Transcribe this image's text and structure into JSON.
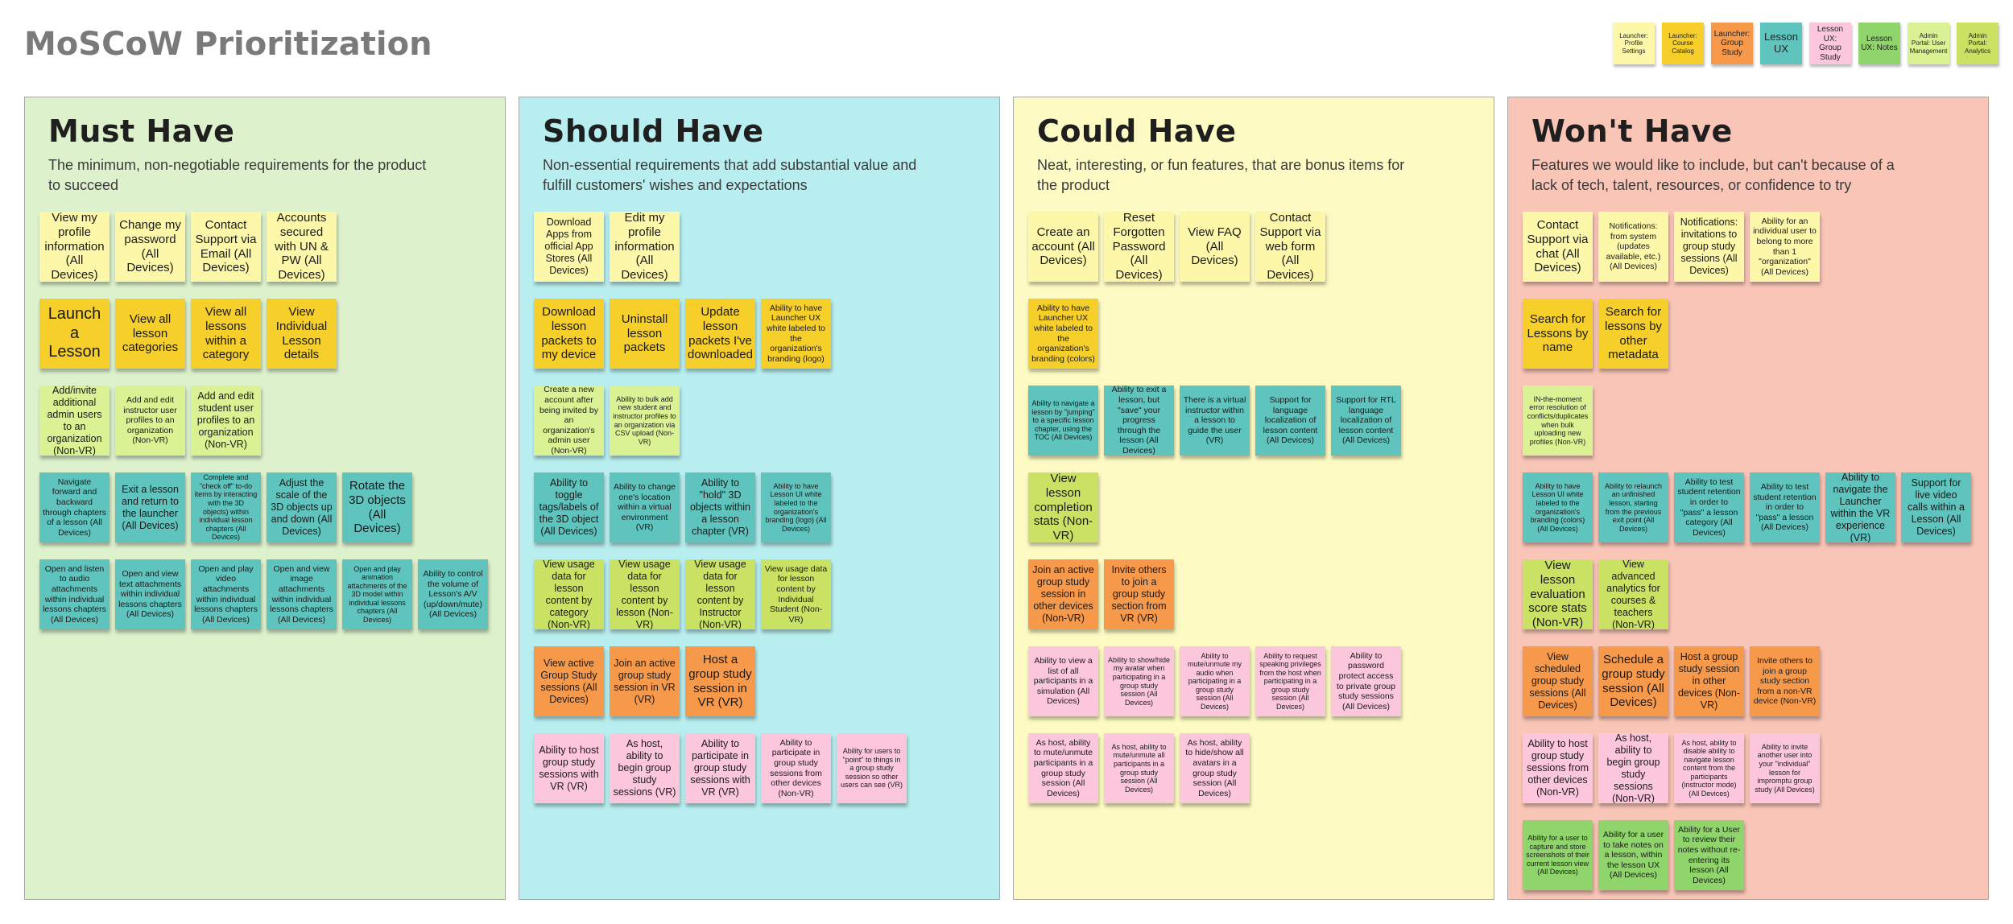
{
  "title": "MoSCoW Prioritization",
  "colors": {
    "light_yellow": "#fdf7a9",
    "yellow": "#f6cf2b",
    "lime": "#dbf294",
    "teal": "#5ec4bd",
    "yellow_green": "#c9e264",
    "orange": "#f7994b",
    "pink": "#fcc7dd",
    "green": "#8fd56c"
  },
  "legend": [
    {
      "label": "Launcher: Profile Settings",
      "color": "#fdf7a9"
    },
    {
      "label": "Launcher: Course Catalog",
      "color": "#f6cf2b"
    },
    {
      "label": "Launcher: Group Study",
      "color": "#f7994b"
    },
    {
      "label": "Lesson UX",
      "color": "#5ec4bd"
    },
    {
      "label": "Lesson UX: Group Study",
      "color": "#fcc7dd"
    },
    {
      "label": "Lesson UX: Notes",
      "color": "#8fd56c"
    },
    {
      "label": "Admin Portal: User Management",
      "color": "#dbf294"
    },
    {
      "label": "Admin Portal: Analytics",
      "color": "#c9e264"
    }
  ],
  "columns": [
    {
      "title": "Must Have",
      "description": "The minimum, non-negotiable requirements for the product to succeed",
      "background": "#dcf1cc",
      "rows": [
        [
          {
            "text": "View my profile information (All Devices)",
            "color": "light_yellow"
          },
          {
            "text": "Change my password (All Devices)",
            "color": "light_yellow"
          },
          {
            "text": "Contact Support via Email (All Devices)",
            "color": "light_yellow"
          },
          {
            "text": "Accounts secured with UN & PW (All Devices)",
            "color": "light_yellow"
          }
        ],
        [
          {
            "text": "Launch a Lesson",
            "color": "yellow"
          },
          {
            "text": "View all lesson categories",
            "color": "yellow"
          },
          {
            "text": "View all lessons within a category",
            "color": "yellow"
          },
          {
            "text": "View Individual Lesson details",
            "color": "yellow"
          }
        ],
        [
          {
            "text": "Add/invite additional admin users to an organization (Non-VR)",
            "color": "lime"
          },
          {
            "text": "Add and edit instructor user profiles to an organization (Non-VR)",
            "color": "lime"
          },
          {
            "text": "Add and edit student user profiles to an organization (Non-VR)",
            "color": "lime"
          }
        ],
        [
          {
            "text": "Navigate forward and backward through chapters of a lesson (All Devices)",
            "color": "teal"
          },
          {
            "text": "Exit a lesson and return to the launcher (All Devices)",
            "color": "teal"
          },
          {
            "text": "Complete and \"check off\" to-do items by interacting with the 3D objects) within individual lesson chapters (All Devices)",
            "color": "teal"
          },
          {
            "text": "Adjust the scale of the 3D objects up and down (All Devices)",
            "color": "teal"
          },
          {
            "text": "Rotate the 3D objects (All Devices)",
            "color": "teal"
          }
        ],
        [
          {
            "text": "Open and listen to audio attachments within individual lessons chapters (All Devices)",
            "color": "teal"
          },
          {
            "text": "Open and view text attachments within individual lessons chapters (All Devices)",
            "color": "teal"
          },
          {
            "text": "Open and play video attachments within individual lessons chapters (All Devices)",
            "color": "teal"
          },
          {
            "text": "Open and view image attachments within individual lessons chapters (All Devices)",
            "color": "teal"
          },
          {
            "text": "Open and play animation attachments of the 3D model within individual lessons chapters (All Devices)",
            "color": "teal"
          },
          {
            "text": "Ability to control the volume of Lesson's A/V (up/down/mute) (All Devices)",
            "color": "teal"
          }
        ]
      ]
    },
    {
      "title": "Should Have",
      "description": "Non-essential requirements that add substantial value and fulfill customers' wishes and expectations",
      "background": "#b8eeef",
      "rows": [
        [
          {
            "text": "Download Apps from official App Stores (All Devices)",
            "color": "light_yellow"
          },
          {
            "text": "Edit my profile information (All Devices)",
            "color": "light_yellow"
          }
        ],
        [
          {
            "text": "Download lesson packets to my device",
            "color": "yellow"
          },
          {
            "text": "Uninstall lesson packets",
            "color": "yellow"
          },
          {
            "text": "Update lesson packets I've downloaded",
            "color": "yellow"
          },
          {
            "text": "Ability to have Launcher UX white labeled to the organization's branding (logo)",
            "color": "yellow"
          }
        ],
        [
          {
            "text": "Create a new account after being invited by an organization's admin user (Non-VR)",
            "color": "lime"
          },
          {
            "text": "Ability to bulk add new student and instructor profiles to an organization via CSV upload (Non-VR)",
            "color": "lime"
          }
        ],
        [
          {
            "text": "Ability to toggle tags/labels of the 3D object (All Devices)",
            "color": "teal"
          },
          {
            "text": "Ability to change one's location within a virtual environment (VR)",
            "color": "teal"
          },
          {
            "text": "Ability to \"hold\" 3D objects within a lesson chapter (VR)",
            "color": "teal"
          },
          {
            "text": "Ability to have Lesson UI white labeled to the organization's branding (logo) (All Devices)",
            "color": "teal"
          }
        ],
        [
          {
            "text": "View usage data for lesson content by category (Non-VR)",
            "color": "yellow_green"
          },
          {
            "text": "View usage data for lesson content by lesson (Non-VR)",
            "color": "yellow_green"
          },
          {
            "text": "View usage data for lesson content by Instructor (Non-VR)",
            "color": "yellow_green"
          },
          {
            "text": "View usage data for lesson content by Individual Student (Non-VR)",
            "color": "yellow_green"
          }
        ],
        [
          {
            "text": "View active Group Study sessions (All Devices)",
            "color": "orange"
          },
          {
            "text": "Join an active group study session in VR (VR)",
            "color": "orange"
          },
          {
            "text": "Host a group study session in VR (VR)",
            "color": "orange"
          }
        ],
        [
          {
            "text": "Ability to host group study sessions with VR (VR)",
            "color": "pink"
          },
          {
            "text": "As host, ability to begin group study sessions (VR)",
            "color": "pink"
          },
          {
            "text": "Ability to participate in group study sessions with VR (VR)",
            "color": "pink"
          },
          {
            "text": "Ability to participate in group study sessions from other devices (Non-VR)",
            "color": "pink"
          },
          {
            "text": "Ability for users to \"point\" to things in a group study session so other users can see (VR)",
            "color": "pink"
          }
        ]
      ]
    },
    {
      "title": "Could Have",
      "description": "Neat, interesting, or fun features, that are bonus items for the product",
      "background": "#fdfbc3",
      "rows": [
        [
          {
            "text": "Create an account (All Devices)",
            "color": "light_yellow"
          },
          {
            "text": "Reset Forgotten Password (All Devices)",
            "color": "light_yellow"
          },
          {
            "text": "View FAQ (All Devices)",
            "color": "light_yellow"
          },
          {
            "text": "Contact Support via web form (All Devices)",
            "color": "light_yellow"
          }
        ],
        [
          {
            "text": "Ability to have Launcher UX white labeled to the organization's branding (colors)",
            "color": "yellow"
          }
        ],
        [
          {
            "text": "Ability to navigate a lesson by \"jumping\" to a specific lesson chapter, using the TOC (All Devices)",
            "color": "teal"
          },
          {
            "text": "Ability to exit a lesson, but \"save\" your progress through the lesson (All Devices)",
            "color": "teal"
          },
          {
            "text": "There is a virtual instructor within a lesson to guide the user (VR)",
            "color": "teal"
          },
          {
            "text": "Support for language localization of lesson content (All Devices)",
            "color": "teal"
          },
          {
            "text": "Support for RTL language localization of lesson content (All Devices)",
            "color": "teal"
          }
        ],
        [
          {
            "text": "View lesson completion stats (Non-VR)",
            "color": "yellow_green"
          }
        ],
        [
          {
            "text": "Join an active group study session in other devices (Non-VR)",
            "color": "orange"
          },
          {
            "text": "Invite others to join a group study section from VR (VR)",
            "color": "orange"
          }
        ],
        [
          {
            "text": "Ability to view a list of all participants in a simulation (All Devices)",
            "color": "pink"
          },
          {
            "text": "Ability to show/hide my avatar when participating in a group study session (All Devices)",
            "color": "pink"
          },
          {
            "text": "Ability to mute/unmute my audio when participating in a group study session (All Devices)",
            "color": "pink"
          },
          {
            "text": "Ability to request speaking privileges from the host when participating in a group study session (All Devices)",
            "color": "pink"
          },
          {
            "text": "Ability to password protect access to private group study sessions (All Devices)",
            "color": "pink"
          }
        ],
        [
          {
            "text": "As host, ability to mute/unmute participants in a group study session (All Devices)",
            "color": "pink"
          },
          {
            "text": "As host, ability to mute/unmute all participants in a group study session (All Devices)",
            "color": "pink"
          },
          {
            "text": "As host, ability to hide/show all avatars in a group study session (All Devices)",
            "color": "pink"
          }
        ]
      ]
    },
    {
      "title": "Won't Have",
      "description": "Features we would like to include, but can't because of a lack of tech, talent, resources, or confidence to try",
      "background": "#f9c5b6",
      "rows": [
        [
          {
            "text": "Contact Support via chat (All Devices)",
            "color": "light_yellow"
          },
          {
            "text": "Notifications: from system (updates available, etc.) (All Devices)",
            "color": "light_yellow"
          },
          {
            "text": "Notifications: invitations to group study sessions (All Devices)",
            "color": "light_yellow"
          },
          {
            "text": "Ability for an individual user to belong to more than 1 \"organization\" (All Devices)",
            "color": "light_yellow"
          }
        ],
        [
          {
            "text": "Search for Lessons by name",
            "color": "yellow"
          },
          {
            "text": "Search for lessons by other metadata",
            "color": "yellow"
          }
        ],
        [
          {
            "text": "IN-the-moment error resolution of conflicts/duplicates when bulk uploading new profiles (Non-VR)",
            "color": "lime"
          }
        ],
        [
          {
            "text": "Ability to have Lesson UI white labeled to the organization's branding (colors) (All Devices)",
            "color": "teal"
          },
          {
            "text": "Ability to relaunch an unfinished lesson, starting from the previous exit point (All Devices)",
            "color": "teal"
          },
          {
            "text": "Ability to test student retention in order to \"pass\" a lesson category (All Devices)",
            "color": "teal"
          },
          {
            "text": "Ability to test student retention in order to \"pass\" a lesson (All Devices)",
            "color": "teal"
          },
          {
            "text": "Ability to navigate the Launcher within the VR experience (VR)",
            "color": "teal"
          },
          {
            "text": "Support for live video calls within a Lesson (All Devices)",
            "color": "teal"
          }
        ],
        [
          {
            "text": "View lesson evaluation score stats (Non-VR)",
            "color": "yellow_green"
          },
          {
            "text": "View advanced analytics for courses & teachers (Non-VR)",
            "color": "yellow_green"
          }
        ],
        [
          {
            "text": "View scheduled group study sessions (All Devices)",
            "color": "orange"
          },
          {
            "text": "Schedule a group study session (All Devices)",
            "color": "orange"
          },
          {
            "text": "Host a group study session in other devices (Non-VR)",
            "color": "orange"
          },
          {
            "text": "Invite others to join a group study section from a non-VR device (Non-VR)",
            "color": "orange"
          }
        ],
        [
          {
            "text": "Ability to host group study sessions from other devices (Non-VR)",
            "color": "pink"
          },
          {
            "text": "As host, ability to begin group study sessions (Non-VR)",
            "color": "pink"
          },
          {
            "text": "As host, ability to disable ability to navigate lesson content from the participants (instructor mode) (All Devices)",
            "color": "pink"
          },
          {
            "text": "Ability to invite another user into your \"individual\" lesson for impromptu group study (All Devices)",
            "color": "pink"
          }
        ],
        [
          {
            "text": "Ability for a user to capture and store screenshots of their current lesson view (All Devices)",
            "color": "green"
          },
          {
            "text": "Ability for a user to take notes on a lesson, within the lesson UX (All Devices)",
            "color": "green"
          },
          {
            "text": "Ability for a User to review their notes without re-entering its lesson (All Devices)",
            "color": "green"
          }
        ]
      ]
    }
  ]
}
